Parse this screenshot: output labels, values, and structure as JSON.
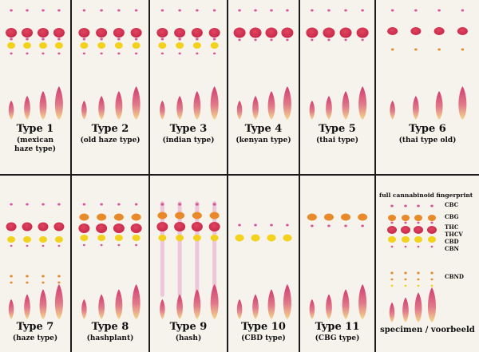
{
  "panels": [
    {
      "title": "Type 1",
      "sub1": "(mexican",
      "sub2": "haze type)",
      "profile": "full"
    },
    {
      "title": "Type 2",
      "sub1": "(old haze type)",
      "sub2": "",
      "profile": "full"
    },
    {
      "title": "Type 3",
      "sub1": "(indian type)",
      "sub2": "",
      "profile": "full"
    },
    {
      "title": "Type 4",
      "sub1": "(kenyan type)",
      "sub2": "",
      "profile": "red-only"
    },
    {
      "title": "Type 5",
      "sub1": "(thai type)",
      "sub2": "",
      "profile": "red-only"
    },
    {
      "title": "Type 6",
      "sub1": "(thai type old)",
      "sub2": "",
      "profile": "thai-old"
    },
    {
      "title": "Type 7",
      "sub1": "(haze type)",
      "sub2": "",
      "profile": "haze"
    },
    {
      "title": "Type 8",
      "sub1": "(hashplant)",
      "sub2": "",
      "profile": "hashplant"
    },
    {
      "title": "Type 9",
      "sub1": "(hash)",
      "sub2": "",
      "profile": "hash"
    },
    {
      "title": "Type 10",
      "sub1": "(CBD type)",
      "sub2": "",
      "profile": "cbd"
    },
    {
      "title": "Type 11",
      "sub1": "(CBG type)",
      "sub2": "",
      "profile": "cbg"
    }
  ],
  "reference": {
    "title": "full cannabinoid fingerprint",
    "labels": [
      "CBC",
      "CBG",
      "THC",
      "THCV",
      "CBD",
      "CBN",
      "CBND"
    ],
    "caption": "specimen / voorbeeld"
  },
  "colors": {
    "background": "#1b1b1b",
    "panel": "#f6f3ec",
    "thc_red": "#c8284a",
    "cbd_yellow": "#f2d21c",
    "cbg_orange": "#e88a2a",
    "magenta": "#d7569a",
    "streak_pink": "#d23c6e"
  }
}
